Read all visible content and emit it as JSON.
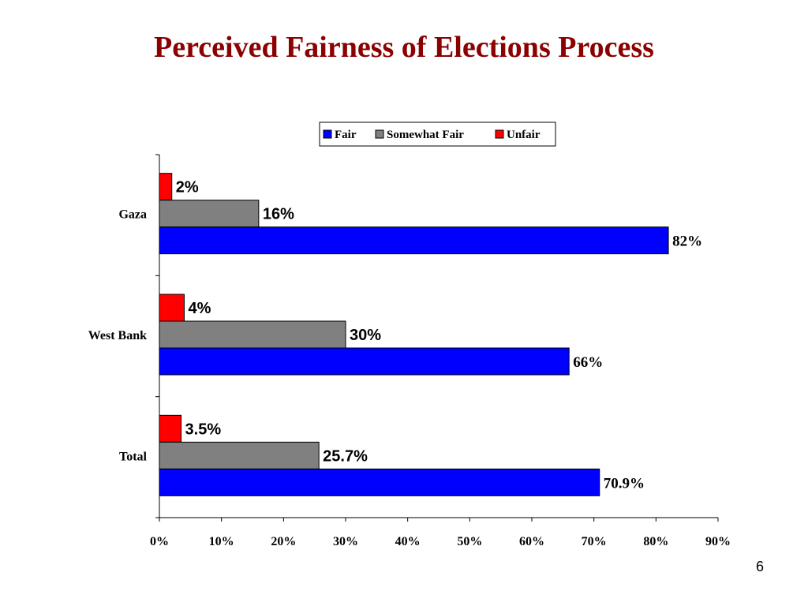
{
  "slide": {
    "title": "Perceived Fairness of Elections Process",
    "page_number": "6"
  },
  "chart_data": {
    "type": "bar",
    "orientation": "horizontal",
    "title": "Perceived Fairness of Elections Process",
    "categories": [
      "Gaza",
      "West Bank",
      "Total"
    ],
    "series": [
      {
        "name": "Fair",
        "color": "#0000ff",
        "values": [
          82,
          66,
          70.9
        ],
        "labels": [
          "82%",
          "66%",
          "70.9%"
        ]
      },
      {
        "name": "Somewhat Fair",
        "color": "#808080",
        "values": [
          16,
          30,
          25.7
        ],
        "labels": [
          "16%",
          "30%",
          "25.7%"
        ]
      },
      {
        "name": "Unfair",
        "color": "#ff0000",
        "values": [
          2,
          4,
          3.5
        ],
        "labels": [
          "2%",
          "4%",
          "3.5%"
        ]
      }
    ],
    "xlim": [
      0,
      90
    ],
    "x_ticks": [
      "0%",
      "10%",
      "20%",
      "30%",
      "40%",
      "50%",
      "60%",
      "70%",
      "80%",
      "90%"
    ],
    "legend_position": "top-right",
    "grid": false
  }
}
